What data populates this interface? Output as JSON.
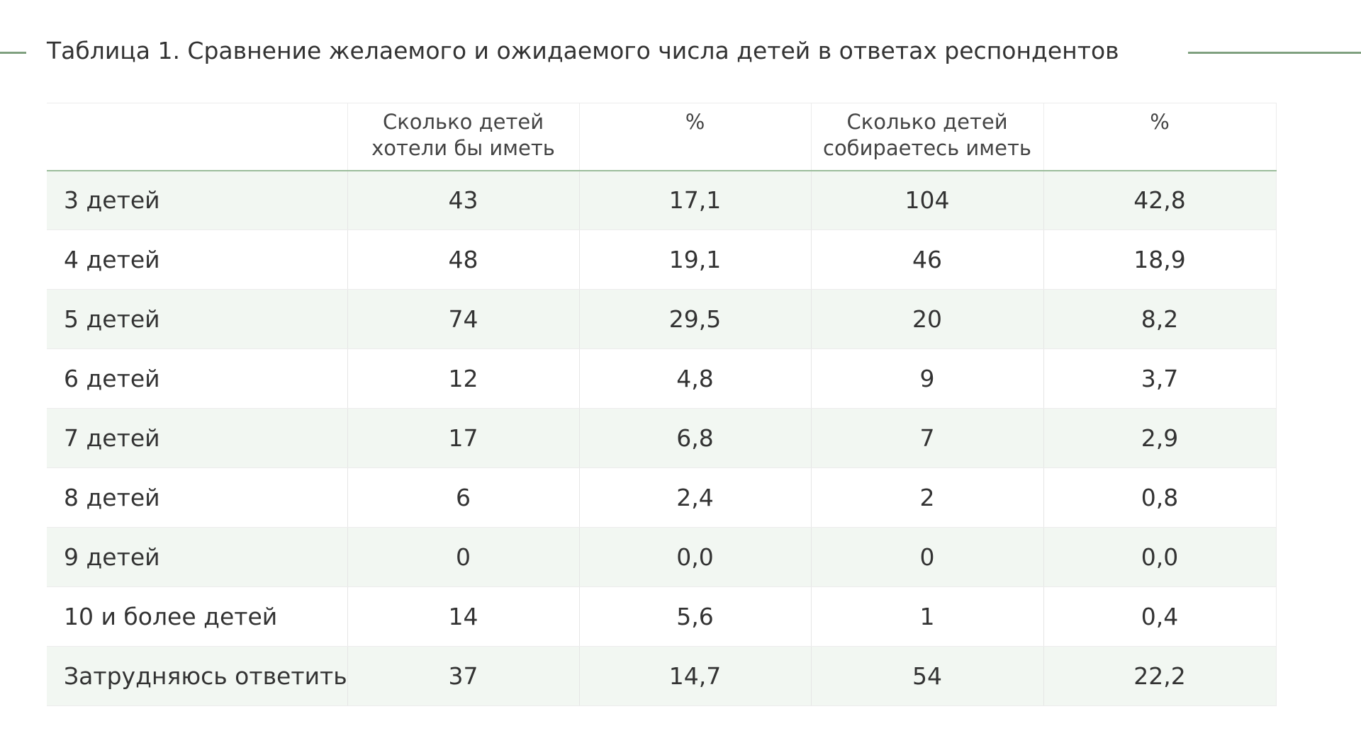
{
  "title": "Таблица 1. Сравнение желаемого и ожидаемого числа детей в ответах респондентов",
  "colors": {
    "accent_rule": "#7fa07f",
    "row_stripe": "#f2f7f2",
    "header_underline": "#9bbd9b"
  },
  "table": {
    "headers": [
      {
        "lines": [
          "",
          ""
        ]
      },
      {
        "lines": [
          "Сколько детей",
          "хотели бы иметь"
        ]
      },
      {
        "lines": [
          "%",
          ""
        ]
      },
      {
        "lines": [
          "Сколько детей",
          "собираетесь иметь"
        ]
      },
      {
        "lines": [
          "%",
          ""
        ]
      }
    ],
    "rows": [
      {
        "label": "3 детей",
        "want": "43",
        "want_pct": "17,1",
        "plan": "104",
        "plan_pct": "42,8"
      },
      {
        "label": "4 детей",
        "want": "48",
        "want_pct": "19,1",
        "plan": "46",
        "plan_pct": "18,9"
      },
      {
        "label": "5 детей",
        "want": "74",
        "want_pct": "29,5",
        "plan": "20",
        "plan_pct": "8,2"
      },
      {
        "label": "6 детей",
        "want": "12",
        "want_pct": "4,8",
        "plan": "9",
        "plan_pct": "3,7"
      },
      {
        "label": "7 детей",
        "want": "17",
        "want_pct": "6,8",
        "plan": "7",
        "plan_pct": "2,9"
      },
      {
        "label": "8 детей",
        "want": "6",
        "want_pct": "2,4",
        "plan": "2",
        "plan_pct": "0,8"
      },
      {
        "label": "9 детей",
        "want": "0",
        "want_pct": "0,0",
        "plan": "0",
        "plan_pct": "0,0"
      },
      {
        "label": "10 и более детей",
        "want": "14",
        "want_pct": "5,6",
        "plan": "1",
        "plan_pct": "0,4"
      },
      {
        "label": "Затрудняюсь ответить",
        "want": "37",
        "want_pct": "14,7",
        "plan": "54",
        "plan_pct": "22,2"
      }
    ]
  }
}
